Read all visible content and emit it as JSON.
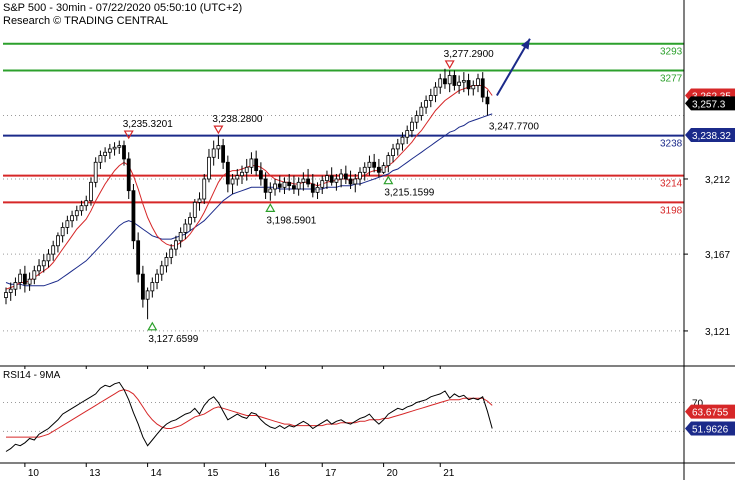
{
  "header": {
    "title": "S&P 500 - 30min - 07/22/2020 05:50:10 (UTC+2)",
    "subtitle": "Research © TRADING CENTRAL"
  },
  "chart_data": [
    {
      "type": "candlestick",
      "name": "price-panel",
      "ylim": [
        3100,
        3312
      ],
      "yticks": [
        {
          "value": 3212,
          "label": "3,212"
        },
        {
          "value": 3167,
          "label": "3,167"
        },
        {
          "value": 3121,
          "label": "3,121"
        }
      ],
      "levels": [
        {
          "value": 3293,
          "label": "3293",
          "color": "#2ca02c"
        },
        {
          "value": 3277,
          "label": "3277",
          "color": "#2ca02c"
        },
        {
          "value": 3238,
          "label": "3238",
          "color": "#1b2a8a"
        },
        {
          "value": 3214,
          "label": "3214",
          "color": "#d62728"
        },
        {
          "value": 3198,
          "label": "3198",
          "color": "#d62728"
        }
      ],
      "price_tags": [
        {
          "value": 3262,
          "label": "3,262.35",
          "bg": "#d62728",
          "fg": "#ffffff"
        },
        {
          "value": 3257.3,
          "label": "3,257.3",
          "bg": "#000000",
          "fg": "#ffffff"
        },
        {
          "value": 3238.32,
          "label": "3,238.32",
          "bg": "#1b2a8a",
          "fg": "#ffffff"
        }
      ],
      "annotations": [
        {
          "x": 26,
          "value": 3235.3201,
          "label": "3,235.3201",
          "kind": "high"
        },
        {
          "x": 45,
          "value": 3238.28,
          "label": "3,238.2800",
          "kind": "high"
        },
        {
          "x": 31,
          "value": 3127.6599,
          "label": "3,127.6599",
          "kind": "low"
        },
        {
          "x": 56,
          "value": 3198.5901,
          "label": "3,198.5901",
          "kind": "low"
        },
        {
          "x": 81,
          "value": 3215.1599,
          "label": "3,215.1599",
          "kind": "low"
        },
        {
          "x": 94,
          "value": 3277.29,
          "label": "3,277.2900",
          "kind": "high"
        },
        {
          "x": 104,
          "value": 3247.77,
          "label": "3,247.7700",
          "kind": "text"
        }
      ],
      "forecast_arrow": {
        "from": {
          "x": 104,
          "value": 3262
        },
        "to": {
          "x": 111,
          "value": 3296
        }
      },
      "candles": [
        [
          3141,
          3147,
          3137,
          3144
        ],
        [
          3144,
          3150,
          3139,
          3146
        ],
        [
          3146,
          3153,
          3142,
          3150
        ],
        [
          3150,
          3158,
          3146,
          3155
        ],
        [
          3155,
          3160,
          3144,
          3149
        ],
        [
          3149,
          3156,
          3145,
          3152
        ],
        [
          3152,
          3160,
          3149,
          3157
        ],
        [
          3157,
          3164,
          3154,
          3160
        ],
        [
          3160,
          3167,
          3156,
          3163
        ],
        [
          3163,
          3170,
          3159,
          3167
        ],
        [
          3167,
          3175,
          3163,
          3172
        ],
        [
          3172,
          3180,
          3168,
          3178
        ],
        [
          3178,
          3186,
          3174,
          3183
        ],
        [
          3183,
          3190,
          3179,
          3187
        ],
        [
          3187,
          3193,
          3183,
          3190
        ],
        [
          3190,
          3196,
          3187,
          3193
        ],
        [
          3193,
          3199,
          3190,
          3196
        ],
        [
          3196,
          3202,
          3193,
          3199
        ],
        [
          3199,
          3213,
          3196,
          3210
        ],
        [
          3210,
          3225,
          3207,
          3222
        ],
        [
          3222,
          3229,
          3218,
          3226
        ],
        [
          3226,
          3231,
          3222,
          3228
        ],
        [
          3228,
          3233,
          3224,
          3230
        ],
        [
          3230,
          3234,
          3226,
          3231
        ],
        [
          3231,
          3235,
          3227,
          3232
        ],
        [
          3232,
          3235,
          3220,
          3224
        ],
        [
          3224,
          3228,
          3200,
          3205
        ],
        [
          3205,
          3209,
          3170,
          3175
        ],
        [
          3175,
          3180,
          3150,
          3155
        ],
        [
          3155,
          3160,
          3135,
          3140
        ],
        [
          3140,
          3147,
          3128,
          3145
        ],
        [
          3145,
          3153,
          3141,
          3150
        ],
        [
          3150,
          3158,
          3146,
          3155
        ],
        [
          3155,
          3163,
          3151,
          3160
        ],
        [
          3160,
          3168,
          3156,
          3165
        ],
        [
          3165,
          3173,
          3161,
          3170
        ],
        [
          3170,
          3178,
          3166,
          3175
        ],
        [
          3175,
          3183,
          3171,
          3180
        ],
        [
          3180,
          3188,
          3176,
          3185
        ],
        [
          3185,
          3192,
          3181,
          3189
        ],
        [
          3189,
          3200,
          3186,
          3198
        ],
        [
          3198,
          3204,
          3193,
          3200
        ],
        [
          3200,
          3215,
          3197,
          3212
        ],
        [
          3212,
          3230,
          3210,
          3225
        ],
        [
          3225,
          3235,
          3220,
          3230
        ],
        [
          3230,
          3238,
          3224,
          3232
        ],
        [
          3232,
          3236,
          3218,
          3222
        ],
        [
          3222,
          3226,
          3204,
          3209
        ],
        [
          3209,
          3215,
          3203,
          3212
        ],
        [
          3212,
          3218,
          3208,
          3214
        ],
        [
          3214,
          3220,
          3209,
          3216
        ],
        [
          3216,
          3224,
          3211,
          3219
        ],
        [
          3219,
          3228,
          3215,
          3224
        ],
        [
          3224,
          3229,
          3214,
          3217
        ],
        [
          3217,
          3222,
          3208,
          3212
        ],
        [
          3212,
          3216,
          3200,
          3204
        ],
        [
          3204,
          3210,
          3199,
          3206
        ],
        [
          3206,
          3212,
          3202,
          3209
        ],
        [
          3209,
          3214,
          3204,
          3207
        ],
        [
          3207,
          3213,
          3203,
          3210
        ],
        [
          3210,
          3215,
          3205,
          3208
        ],
        [
          3208,
          3214,
          3203,
          3206
        ],
        [
          3206,
          3213,
          3202,
          3210
        ],
        [
          3210,
          3216,
          3205,
          3212
        ],
        [
          3212,
          3218,
          3207,
          3209
        ],
        [
          3209,
          3215,
          3201,
          3204
        ],
        [
          3204,
          3210,
          3200,
          3207
        ],
        [
          3207,
          3214,
          3203,
          3211
        ],
        [
          3211,
          3217,
          3206,
          3214
        ],
        [
          3214,
          3219,
          3208,
          3210
        ],
        [
          3210,
          3215,
          3205,
          3212
        ],
        [
          3212,
          3218,
          3207,
          3215
        ],
        [
          3215,
          3220,
          3209,
          3212
        ],
        [
          3212,
          3217,
          3206,
          3209
        ],
        [
          3209,
          3215,
          3204,
          3212
        ],
        [
          3212,
          3219,
          3208,
          3216
        ],
        [
          3216,
          3222,
          3211,
          3219
        ],
        [
          3219,
          3226,
          3214,
          3222
        ],
        [
          3222,
          3227,
          3216,
          3219
        ],
        [
          3219,
          3224,
          3213,
          3216
        ],
        [
          3216,
          3222,
          3215,
          3220
        ],
        [
          3220,
          3228,
          3216,
          3226
        ],
        [
          3226,
          3233,
          3222,
          3230
        ],
        [
          3230,
          3236,
          3226,
          3233
        ],
        [
          3233,
          3240,
          3229,
          3237
        ],
        [
          3237,
          3244,
          3233,
          3241
        ],
        [
          3241,
          3249,
          3237,
          3246
        ],
        [
          3246,
          3253,
          3242,
          3250
        ],
        [
          3250,
          3258,
          3247,
          3255
        ],
        [
          3255,
          3262,
          3251,
          3259
        ],
        [
          3259,
          3266,
          3255,
          3262
        ],
        [
          3262,
          3270,
          3258,
          3267
        ],
        [
          3267,
          3275,
          3263,
          3272
        ],
        [
          3272,
          3278,
          3266,
          3269
        ],
        [
          3269,
          3277,
          3264,
          3274
        ],
        [
          3274,
          3277,
          3265,
          3268
        ],
        [
          3268,
          3274,
          3263,
          3270
        ],
        [
          3270,
          3276,
          3264,
          3271
        ],
        [
          3271,
          3275,
          3262,
          3266
        ],
        [
          3266,
          3271,
          3262,
          3268
        ],
        [
          3268,
          3275,
          3264,
          3272
        ],
        [
          3272,
          3276,
          3258,
          3261
        ],
        [
          3261,
          3265,
          3250,
          3257
        ]
      ],
      "ma_fast": [
        3146,
        3147,
        3148,
        3150,
        3150,
        3151,
        3153,
        3155,
        3157,
        3159,
        3162,
        3166,
        3170,
        3174,
        3178,
        3182,
        3185,
        3188,
        3193,
        3199,
        3204,
        3209,
        3213,
        3217,
        3220,
        3222,
        3220,
        3214,
        3206,
        3197,
        3189,
        3183,
        3178,
        3175,
        3173,
        3172,
        3172,
        3174,
        3176,
        3179,
        3183,
        3187,
        3192,
        3198,
        3204,
        3210,
        3214,
        3216,
        3217,
        3217,
        3218,
        3219,
        3220,
        3220,
        3219,
        3217,
        3214,
        3212,
        3211,
        3210,
        3210,
        3209,
        3209,
        3210,
        3210,
        3209,
        3208,
        3209,
        3210,
        3211,
        3211,
        3212,
        3212,
        3211,
        3212,
        3213,
        3214,
        3216,
        3217,
        3217,
        3218,
        3220,
        3222,
        3225,
        3228,
        3231,
        3234,
        3238,
        3241,
        3245,
        3249,
        3253,
        3256,
        3259,
        3261,
        3263,
        3265,
        3266,
        3267,
        3268,
        3268,
        3268,
        3266,
        3262
      ],
      "ma_slow": [
        3150,
        3149,
        3149,
        3149,
        3148,
        3148,
        3148,
        3148,
        3148,
        3149,
        3150,
        3151,
        3153,
        3155,
        3157,
        3159,
        3161,
        3163,
        3166,
        3169,
        3172,
        3175,
        3178,
        3181,
        3184,
        3186,
        3187,
        3186,
        3184,
        3182,
        3180,
        3178,
        3177,
        3176,
        3176,
        3176,
        3177,
        3178,
        3179,
        3181,
        3183,
        3185,
        3187,
        3190,
        3193,
        3196,
        3199,
        3201,
        3203,
        3204,
        3205,
        3206,
        3207,
        3207,
        3207,
        3207,
        3207,
        3207,
        3206,
        3206,
        3206,
        3206,
        3206,
        3206,
        3206,
        3206,
        3206,
        3206,
        3207,
        3207,
        3207,
        3208,
        3208,
        3208,
        3209,
        3209,
        3210,
        3211,
        3212,
        3213,
        3214,
        3215,
        3217,
        3218,
        3220,
        3222,
        3224,
        3226,
        3228,
        3230,
        3232,
        3234,
        3236,
        3238,
        3240,
        3241,
        3243,
        3244,
        3246,
        3247,
        3248,
        3249,
        3250,
        3251
      ]
    },
    {
      "type": "line",
      "name": "rsi-panel",
      "title": "RSI14 - 9MA",
      "ylim": [
        28,
        94
      ],
      "yticks": [
        {
          "value": 70,
          "label": "70"
        }
      ],
      "price_tags": [
        {
          "value": 63.6755,
          "label": "63.6755",
          "bg": "#d62728",
          "fg": "#ffffff"
        },
        {
          "value": 51.9626,
          "label": "51.9626",
          "bg": "#1b2a8a",
          "fg": "#ffffff"
        }
      ],
      "rsi": [
        36,
        38,
        41,
        40,
        42,
        45,
        44,
        48,
        50,
        52,
        55,
        58,
        62,
        64,
        66,
        68,
        70,
        72,
        74,
        76,
        80,
        82,
        81,
        83,
        84,
        79,
        72,
        63,
        55,
        46,
        40,
        44,
        48,
        52,
        55,
        57,
        58,
        60,
        62,
        63,
        66,
        62,
        68,
        72,
        74,
        70,
        64,
        58,
        60,
        62,
        60,
        59,
        63,
        62,
        58,
        55,
        53,
        52,
        54,
        52,
        54,
        53,
        55,
        57,
        55,
        52,
        54,
        56,
        58,
        55,
        57,
        58,
        56,
        55,
        57,
        59,
        60,
        62,
        58,
        55,
        58,
        62,
        64,
        66,
        65,
        67,
        68,
        70,
        71,
        72,
        74,
        75,
        76,
        78,
        73,
        76,
        74,
        75,
        72,
        73,
        72,
        74,
        64,
        52
      ],
      "rsi_ma": [
        46,
        46,
        46,
        46,
        46,
        46,
        46,
        46,
        47,
        48,
        50,
        52,
        54,
        56,
        58,
        60,
        62,
        64,
        66,
        68,
        70,
        72,
        74,
        76,
        78,
        79,
        78,
        76,
        72,
        67,
        62,
        58,
        55,
        53,
        52,
        52,
        53,
        54,
        56,
        58,
        60,
        61,
        62,
        64,
        66,
        67,
        66,
        65,
        64,
        63,
        62,
        61,
        61,
        61,
        60,
        59,
        58,
        57,
        56,
        55,
        55,
        54,
        54,
        54,
        54,
        54,
        54,
        54,
        55,
        55,
        55,
        56,
        56,
        56,
        56,
        57,
        57,
        58,
        58,
        58,
        59,
        59,
        60,
        61,
        62,
        63,
        64,
        65,
        66,
        67,
        68,
        69,
        70,
        71,
        72,
        72,
        72,
        73,
        73,
        73,
        73,
        73,
        71,
        68
      ]
    }
  ],
  "xaxis": {
    "labels": [
      {
        "x": 4,
        "label": "10"
      },
      {
        "x": 17,
        "label": "13"
      },
      {
        "x": 30,
        "label": "14"
      },
      {
        "x": 42,
        "label": "15"
      },
      {
        "x": 55,
        "label": "16"
      },
      {
        "x": 67,
        "label": "17"
      },
      {
        "x": 80,
        "label": "20"
      },
      {
        "x": 92,
        "label": "21"
      }
    ]
  },
  "colors": {
    "bull": "#ffffff",
    "bear": "#000000",
    "ma_fast": "#d62728",
    "ma_slow": "#1b2a8a",
    "rsi": "#000000",
    "rsi_ma": "#d62728",
    "grid": "#9a9a9a",
    "annotation_high": "#d62728",
    "annotation_low": "#2ca02c",
    "arrow": "#1b2a8a"
  }
}
